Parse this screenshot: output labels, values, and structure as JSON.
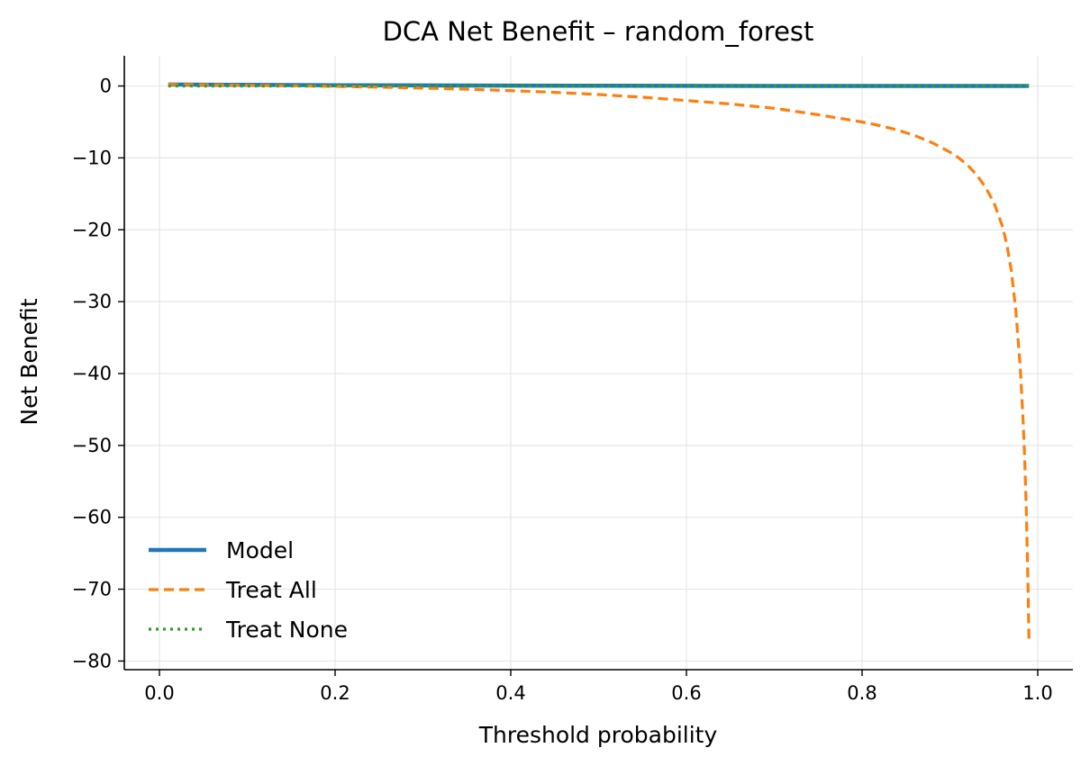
{
  "chart_data": {
    "type": "line",
    "title": "DCA Net Benefit – random_forest",
    "xlabel": "Threshold probability",
    "ylabel": "Net Benefit",
    "xlim": [
      -0.04,
      1.04
    ],
    "ylim": [
      -81.2,
      4.2
    ],
    "x_ticks": [
      0.0,
      0.2,
      0.4,
      0.6,
      0.8,
      1.0
    ],
    "x_tick_labels": [
      "0.0",
      "0.2",
      "0.4",
      "0.6",
      "0.8",
      "1.0"
    ],
    "y_ticks": [
      0,
      -10,
      -20,
      -30,
      -40,
      -50,
      -60,
      -70,
      -80
    ],
    "y_tick_labels": [
      "0",
      "−10",
      "−20",
      "−30",
      "−40",
      "−50",
      "−60",
      "−70",
      "−80"
    ],
    "grid": true,
    "legend_position": "lower-left",
    "series": [
      {
        "name": "Model",
        "style": "solid",
        "color": "#1f77b4",
        "x": [
          0.01,
          0.1,
          0.2,
          0.3,
          0.4,
          0.5,
          0.6,
          0.7,
          0.8,
          0.9,
          0.99
        ],
        "y": [
          0.2,
          0.15,
          0.1,
          0.08,
          0.05,
          0.03,
          0.02,
          0.01,
          0.0,
          0.0,
          0.0
        ]
      },
      {
        "name": "Treat All",
        "style": "dashed",
        "color": "#ff7f0e",
        "x": [
          0.01,
          0.05,
          0.1,
          0.15,
          0.2,
          0.25,
          0.3,
          0.35,
          0.4,
          0.45,
          0.5,
          0.55,
          0.6,
          0.65,
          0.7,
          0.75,
          0.8,
          0.82,
          0.84,
          0.86,
          0.88,
          0.9,
          0.91,
          0.92,
          0.93,
          0.94,
          0.95,
          0.96,
          0.965,
          0.97,
          0.975,
          0.98,
          0.983,
          0.985,
          0.987,
          0.989,
          0.99
        ],
        "y": [
          0.22,
          0.18,
          0.11,
          0.03,
          -0.06,
          -0.16,
          -0.29,
          -0.45,
          -0.64,
          -0.88,
          -1.19,
          -1.56,
          -2.02,
          -2.5,
          -3.1,
          -4.0,
          -5.0,
          -5.5,
          -6.1,
          -6.9,
          -7.9,
          -9.2,
          -10.0,
          -11.0,
          -12.3,
          -14.0,
          -16.2,
          -19.6,
          -22.2,
          -25.8,
          -31.2,
          -39.0,
          -45.7,
          -51.5,
          -59.0,
          -70.3,
          -77.4
        ]
      },
      {
        "name": "Treat None",
        "style": "dotted",
        "color": "#2ca02c",
        "x": [
          0.01,
          0.99
        ],
        "y": [
          0.0,
          0.0
        ]
      }
    ]
  }
}
